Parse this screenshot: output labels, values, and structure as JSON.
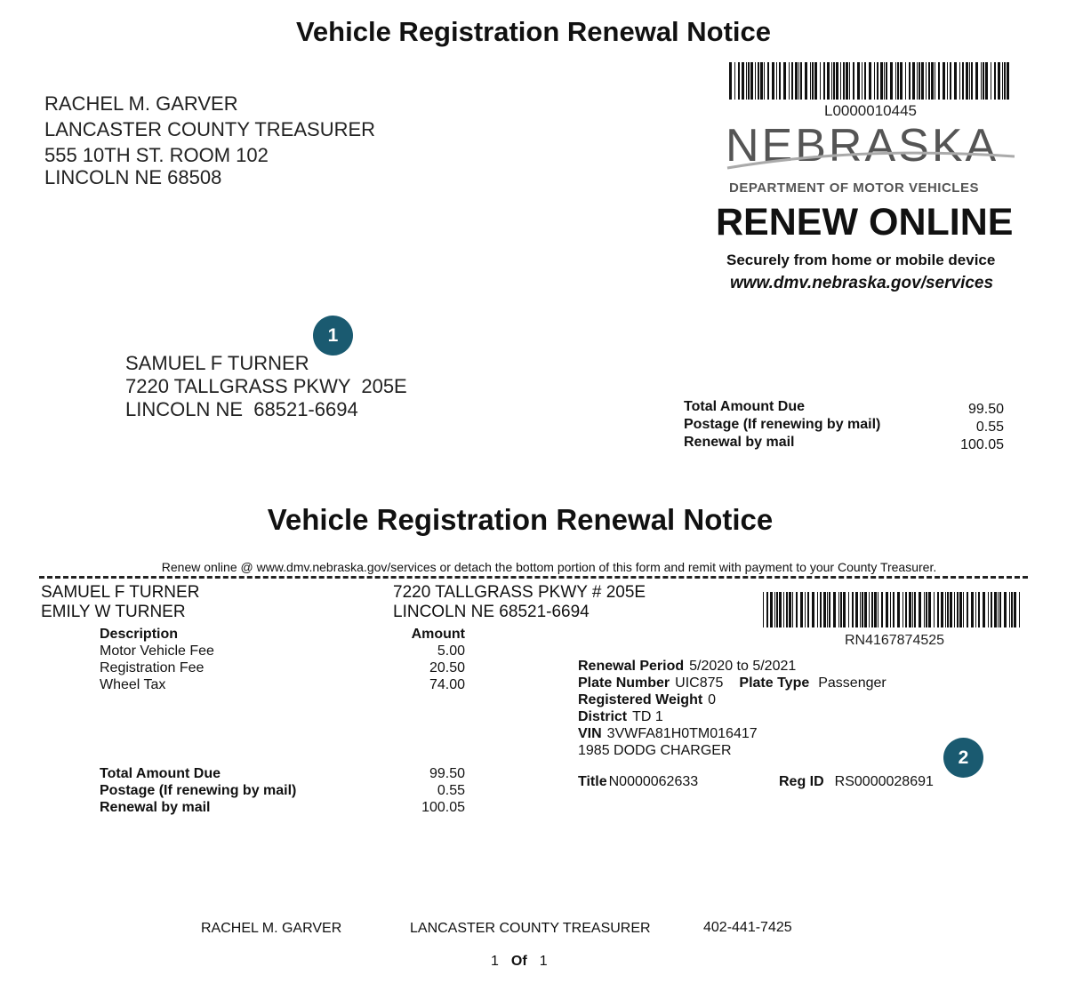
{
  "notice_title": "Vehicle Registration Renewal Notice",
  "treasurer": {
    "name": "RACHEL M. GARVER",
    "title": "LANCASTER COUNTY TREASURER",
    "street": "555 10TH ST. ROOM 102",
    "city": "LINCOLN NE 68508",
    "phone": "402-441-7425"
  },
  "top_barcode": "L0000010445",
  "logo": {
    "state": "NEBRASKA",
    "dept": "DEPARTMENT OF MOTOR VEHICLES"
  },
  "promo": {
    "headline": "RENEW ONLINE",
    "sub": "Securely from home or mobile device",
    "url": "www.dmv.nebraska.gov/services"
  },
  "badges": [
    "1",
    "2"
  ],
  "recipient": {
    "name": "SAMUEL F TURNER",
    "street": "7220 TALLGRASS PKWY  205E",
    "city": "LINCOLN NE  68521-6694"
  },
  "summary": [
    {
      "label": "Total Amount Due",
      "value": "99.50"
    },
    {
      "label": "Postage (If renewing by mail)",
      "value": "0.55"
    },
    {
      "label": "Renewal by mail",
      "value": "100.05"
    }
  ],
  "instructions": "Renew online @ www.dmv.nebraska.gov/services or detach the bottom portion of this form and remit with payment to your County Treasurer.",
  "stub": {
    "owners": [
      "SAMUEL F TURNER",
      "EMILY W TURNER"
    ],
    "address": [
      "7220 TALLGRASS PKWY # 205E",
      "LINCOLN NE 68521-6694"
    ],
    "barcode": "RN4167874525",
    "desc_header": "Description",
    "amount_header": "Amount",
    "fees": [
      {
        "label": "Motor Vehicle Fee",
        "value": "5.00"
      },
      {
        "label": "Registration Fee",
        "value": "20.50"
      },
      {
        "label": "Wheel Tax",
        "value": "74.00"
      }
    ],
    "renewal_period_label": "Renewal Period",
    "renewal_period": "5/2020 to 5/2021",
    "plate_number_label": "Plate Number",
    "plate_number": "UIC875",
    "plate_type_label": "Plate Type",
    "plate_type": "Passenger",
    "weight_label": "Registered Weight",
    "weight": "0",
    "district_label": "District",
    "district": "TD 1",
    "vin_label": "VIN",
    "vin": "3VWFA81H0TM016417",
    "vehicle": "1985 DODG CHARGER",
    "title_label": "Title",
    "title": "N0000062633",
    "regid_label": "Reg ID",
    "regid": "RS0000028691"
  },
  "footer": {
    "page": "1",
    "of": "Of",
    "total": "1"
  }
}
